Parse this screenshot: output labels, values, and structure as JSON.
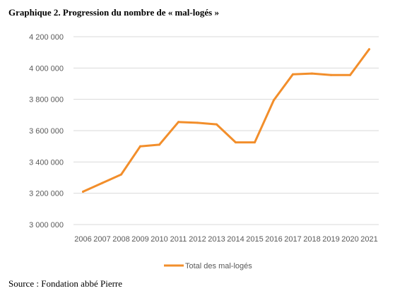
{
  "title": "Graphique 2. Progression du nombre de « mal-logés »",
  "source": "Source : Fondation abbé Pierre",
  "chart_data": {
    "type": "line",
    "title": "",
    "xlabel": "",
    "ylabel": "",
    "categories": [
      "2006",
      "2007",
      "2008",
      "2009",
      "2010",
      "2011",
      "2012",
      "2013",
      "2014",
      "2015",
      "2016",
      "2017",
      "2018",
      "2019",
      "2020",
      "2021"
    ],
    "series": [
      {
        "name": "Total des mal-logés",
        "color": "#F28E2B",
        "values": [
          3210000,
          3265000,
          3320000,
          3500000,
          3510000,
          3655000,
          3650000,
          3640000,
          3525000,
          3525000,
          3795000,
          3960000,
          3965000,
          3955000,
          3955000,
          4120000
        ]
      }
    ],
    "ylim": [
      3000000,
      4200000
    ],
    "yticks": [
      3000000,
      3200000,
      3400000,
      3600000,
      3800000,
      4000000,
      4200000
    ],
    "ytick_labels": [
      "3 000 000",
      "3 200 000",
      "3 400 000",
      "3 600 000",
      "3 800 000",
      "4 000 000",
      "4 200 000"
    ],
    "grid": true,
    "legend_position": "bottom"
  }
}
